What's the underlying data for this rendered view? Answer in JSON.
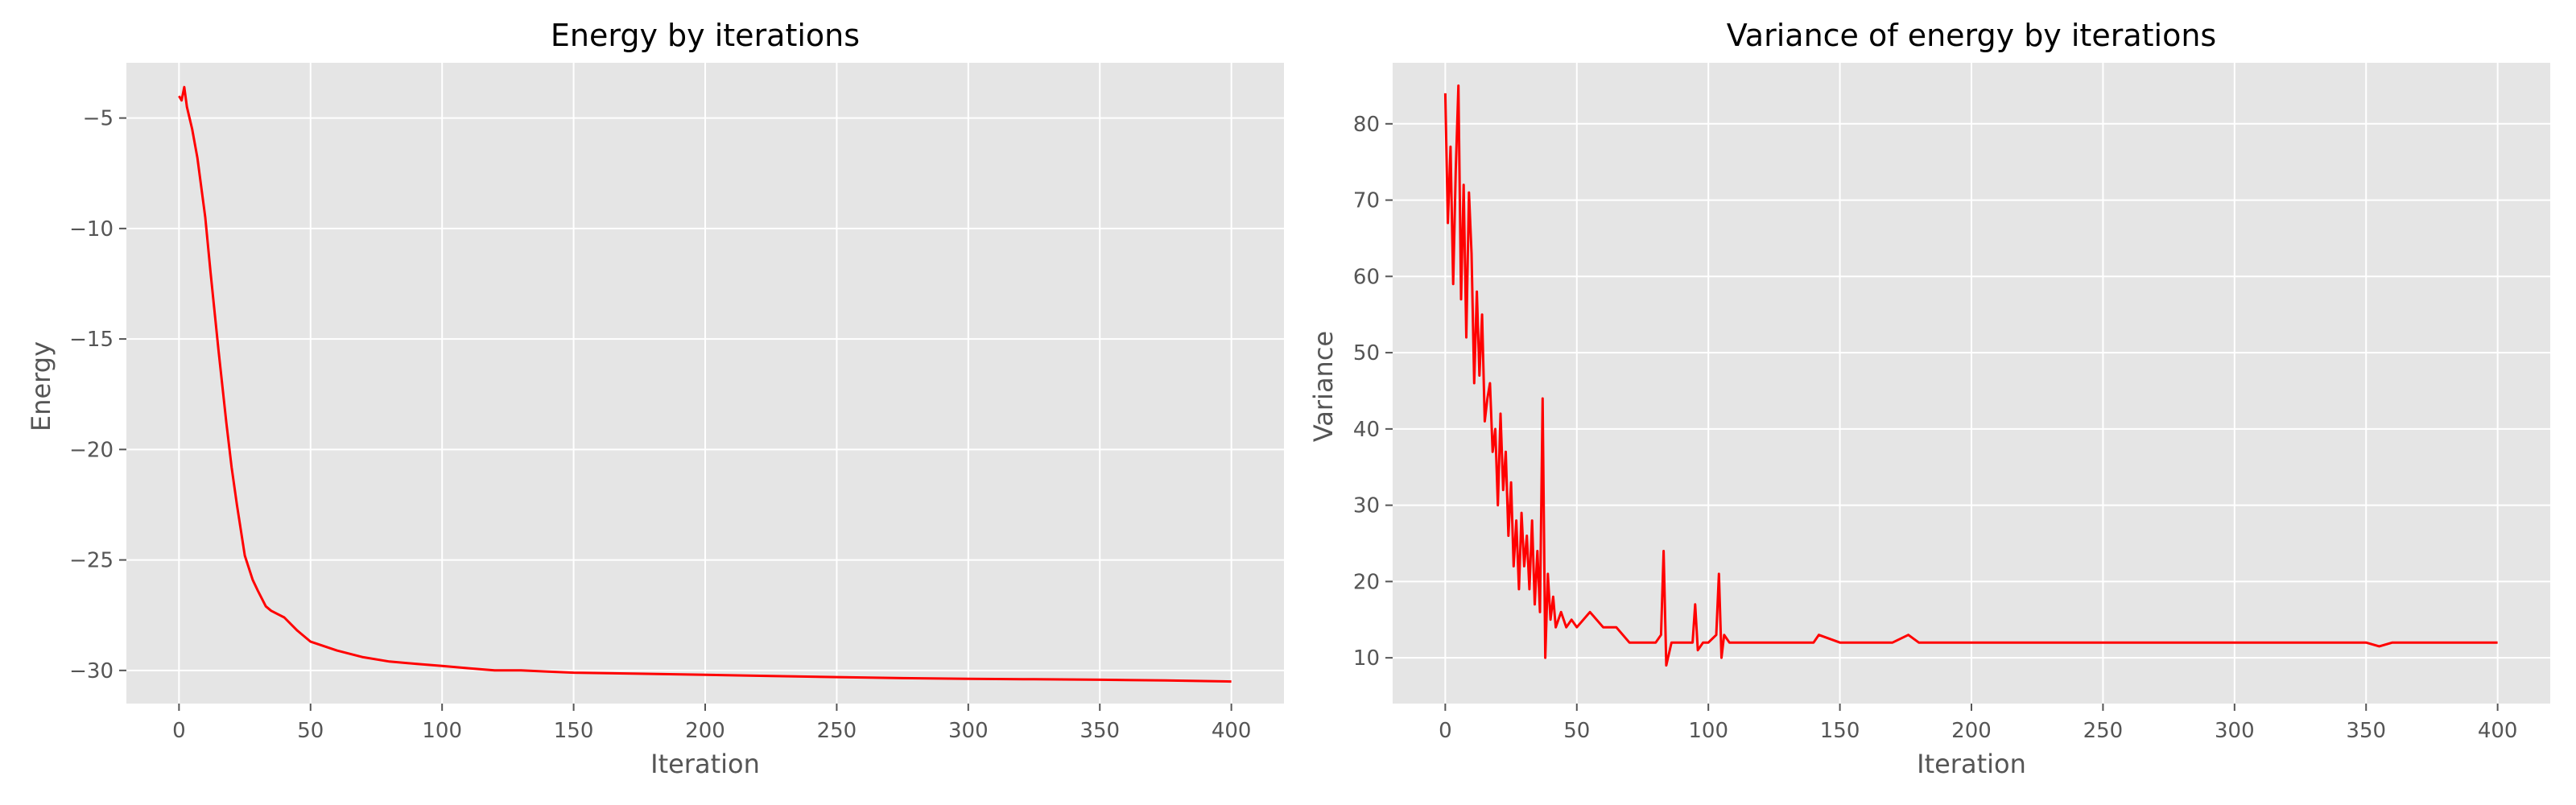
{
  "chart_data": [
    {
      "type": "line",
      "title": "Energy by iterations",
      "xlabel": "Iteration",
      "ylabel": "Energy",
      "xlim": [
        -20,
        420
      ],
      "ylim": [
        -31.5,
        -2.5
      ],
      "xticks": [
        0,
        50,
        100,
        150,
        200,
        250,
        300,
        350,
        400
      ],
      "yticks": [
        -30,
        -25,
        -20,
        -15,
        -10,
        -5
      ],
      "ytick_labels": [
        "−30",
        "−25",
        "−20",
        "−15",
        "−10",
        "−5"
      ],
      "grid": true,
      "legend": false,
      "series": [
        {
          "color": "#ff0000",
          "x": [
            0,
            1,
            2,
            3,
            5,
            7,
            10,
            12,
            15,
            18,
            20,
            22,
            25,
            28,
            30,
            33,
            35,
            40,
            45,
            50,
            60,
            70,
            80,
            90,
            100,
            110,
            120,
            130,
            140,
            150,
            175,
            200,
            225,
            250,
            275,
            300,
            325,
            350,
            375,
            400
          ],
          "y": [
            -4.0,
            -4.2,
            -3.6,
            -4.5,
            -5.5,
            -6.8,
            -9.5,
            -12.0,
            -15.5,
            -18.8,
            -20.8,
            -22.5,
            -24.8,
            -25.9,
            -26.4,
            -27.1,
            -27.3,
            -27.6,
            -28.2,
            -28.7,
            -29.1,
            -29.4,
            -29.6,
            -29.7,
            -29.8,
            -29.9,
            -30.0,
            -30.0,
            -30.05,
            -30.1,
            -30.15,
            -30.2,
            -30.25,
            -30.3,
            -30.35,
            -30.38,
            -30.4,
            -30.42,
            -30.45,
            -30.5
          ]
        }
      ]
    },
    {
      "type": "line",
      "title": "Variance of energy by iterations",
      "xlabel": "Iteration",
      "ylabel": "Variance",
      "xlim": [
        -20,
        420
      ],
      "ylim": [
        4,
        88
      ],
      "xticks": [
        0,
        50,
        100,
        150,
        200,
        250,
        300,
        350,
        400
      ],
      "yticks": [
        10,
        20,
        30,
        40,
        50,
        60,
        70,
        80
      ],
      "ytick_labels": [
        "10",
        "20",
        "30",
        "40",
        "50",
        "60",
        "70",
        "80"
      ],
      "grid": true,
      "legend": false,
      "series": [
        {
          "color": "#ff0000",
          "x": [
            0,
            1,
            2,
            3,
            4,
            5,
            6,
            7,
            8,
            9,
            10,
            11,
            12,
            13,
            14,
            15,
            16,
            17,
            18,
            19,
            20,
            21,
            22,
            23,
            24,
            25,
            26,
            27,
            28,
            29,
            30,
            31,
            32,
            33,
            34,
            35,
            36,
            37,
            38,
            39,
            40,
            41,
            42,
            44,
            46,
            48,
            50,
            55,
            60,
            65,
            70,
            75,
            80,
            82,
            83,
            84,
            86,
            90,
            94,
            95,
            96,
            98,
            100,
            103,
            104,
            105,
            106,
            108,
            110,
            115,
            120,
            130,
            140,
            142,
            150,
            160,
            170,
            176,
            180,
            190,
            200,
            210,
            220,
            230,
            240,
            250,
            260,
            270,
            280,
            290,
            300,
            310,
            320,
            330,
            340,
            350,
            355,
            360,
            370,
            380,
            390,
            395,
            400
          ],
          "y": [
            84,
            67,
            77,
            59,
            74,
            85,
            57,
            72,
            52,
            71,
            63,
            46,
            58,
            47,
            55,
            41,
            44,
            46,
            37,
            40,
            30,
            42,
            32,
            37,
            26,
            33,
            22,
            28,
            19,
            29,
            22,
            26,
            19,
            28,
            17,
            24,
            16,
            44,
            10,
            21,
            15,
            18,
            14,
            16,
            14,
            15,
            14,
            16,
            14,
            14,
            12,
            12,
            12,
            13,
            24,
            9,
            12,
            12,
            12,
            17,
            11,
            12,
            12,
            13,
            21,
            10,
            13,
            12,
            12,
            12,
            12,
            12,
            12,
            13,
            12,
            12,
            12,
            13,
            12,
            12,
            12,
            12,
            12,
            12,
            12,
            12,
            12,
            12,
            12,
            12,
            12,
            12,
            12,
            12,
            12,
            12,
            11.5,
            12,
            12,
            12,
            12,
            12,
            12
          ]
        }
      ]
    }
  ]
}
